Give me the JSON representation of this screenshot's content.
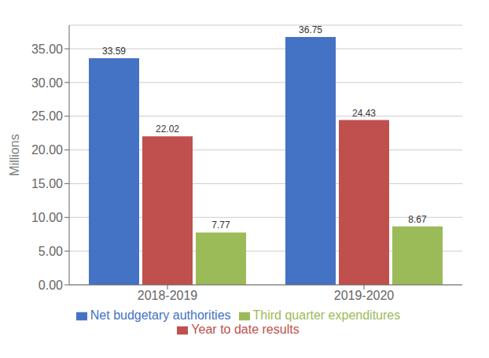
{
  "chart_data": {
    "type": "bar",
    "categories": [
      "2018-2019",
      "2019-2020"
    ],
    "series": [
      {
        "name": "Net budgetary authorities",
        "color": "#4472C4",
        "values": [
          33.59,
          36.75
        ]
      },
      {
        "name": "Year to date results",
        "color": "#C0504D",
        "values": [
          22.02,
          24.43
        ]
      },
      {
        "name": "Third quarter expenditures",
        "color": "#9BBB59",
        "values": [
          7.77,
          8.67
        ]
      }
    ],
    "ylabel": "Millions",
    "ylim": [
      0,
      38.5
    ],
    "yticks": [
      {
        "value": 0,
        "label": "0.00"
      },
      {
        "value": 5,
        "label": "5.00"
      },
      {
        "value": 10,
        "label": "10.00"
      },
      {
        "value": 15,
        "label": "15.00"
      },
      {
        "value": 20,
        "label": "20.00"
      },
      {
        "value": 25,
        "label": "25.00"
      },
      {
        "value": 30,
        "label": "30.00"
      },
      {
        "value": 35,
        "label": "35.00"
      }
    ],
    "grid": true,
    "legend": "bottom",
    "data_labels": true
  }
}
